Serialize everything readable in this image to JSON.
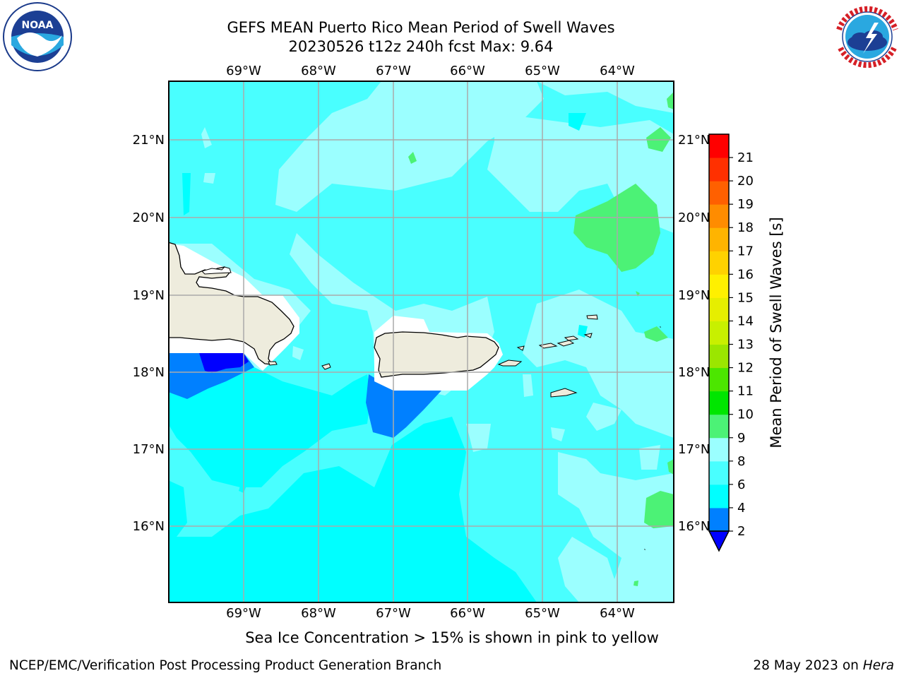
{
  "header": {
    "title_line1": "GEFS MEAN Puerto Rico Mean Period of Swell Waves",
    "title_line2": "20230526 t12z 240h fcst   Max: 9.64"
  },
  "logos": {
    "noaa": {
      "icon": "noaa-logo-icon",
      "text": "NOAA",
      "ring_text": "NATIONAL OCEANIC AND ATMOSPHERIC ADMINISTRATION · U.S. DEPARTMENT OF COMMERCE"
    },
    "nws": {
      "icon": "nws-logo-icon",
      "ring_text": "NATIONAL WEATHER SERVICE"
    }
  },
  "map": {
    "lon_labels": [
      "69°W",
      "68°W",
      "67°W",
      "66°W",
      "65°W",
      "64°W"
    ],
    "lat_labels": [
      "21°N",
      "20°N",
      "19°N",
      "18°N",
      "17°N",
      "16°N"
    ],
    "gridlines": true,
    "land_color": "#eeecdd",
    "ocean_colors": {
      "4-6": "#00ffff",
      "6-8": "#49ffff",
      "8-9": "#9bffff",
      "9-10": "#4cf276",
      "2-4": "#0080ff",
      "below-2": "#0000ff"
    }
  },
  "colorbar": {
    "label": "Mean Period of Swell Waves [s]",
    "ticks": [
      "2",
      "4",
      "6",
      "8",
      "9",
      "10",
      "11",
      "12",
      "13",
      "14",
      "15",
      "16",
      "17",
      "18",
      "19",
      "20",
      "21"
    ],
    "colors": [
      "#0080ff",
      "#00ffff",
      "#49ffff",
      "#9bffff",
      "#4cf276",
      "#00e600",
      "#4ce600",
      "#9be600",
      "#c8f000",
      "#e6ee00",
      "#fff000",
      "#ffd200",
      "#ffb400",
      "#ff8c00",
      "#ff6000",
      "#ff3000",
      "#ff0000"
    ],
    "under_color": "#0000ff"
  },
  "footer": {
    "ice_note": "Sea Ice Concentration > 15% is shown in pink to yellow",
    "credit_left": "NCEP/EMC/Verification Post Processing Product Generation Branch",
    "credit_date": "28 May 2023 on ",
    "credit_machine": "Hera"
  }
}
